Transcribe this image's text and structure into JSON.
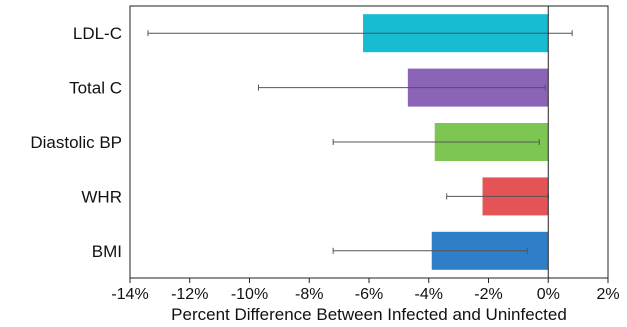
{
  "chart_data": {
    "type": "bar",
    "orientation": "horizontal",
    "categories": [
      "LDL-C",
      "Total C",
      "Diastolic BP",
      "WHR",
      "BMI"
    ],
    "values": [
      -6.2,
      -4.7,
      -3.8,
      -2.2,
      -3.9
    ],
    "error_low": [
      -13.4,
      -9.7,
      -7.2,
      -3.4,
      -7.2
    ],
    "error_high": [
      0.8,
      -0.1,
      -0.3,
      0.0,
      -0.7
    ],
    "colors": [
      "#17bcd3",
      "#8b64b8",
      "#7ec653",
      "#e45456",
      "#2f7fc8"
    ],
    "xlabel": "Percent Difference Between Infected and Uninfected",
    "ylabel": "",
    "xlim": [
      -14,
      2
    ],
    "xticks": [
      "-14%",
      "-12%",
      "-10%",
      "-8%",
      "-6%",
      "-4%",
      "-2%",
      "0%",
      "2%"
    ],
    "grid": false
  }
}
